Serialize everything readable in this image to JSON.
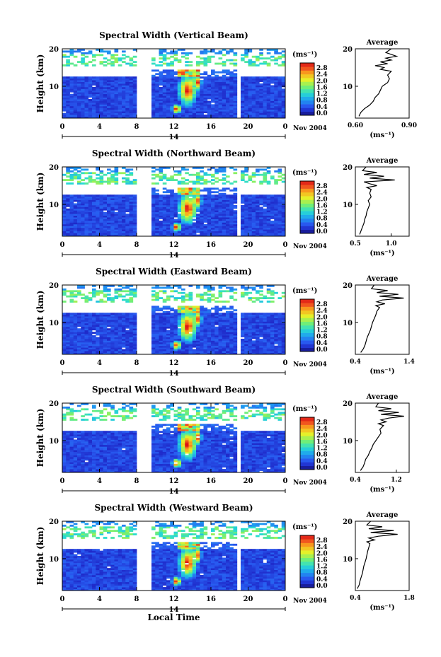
{
  "chart_data": [
    {
      "type": "heatmap",
      "title": "Spectral Width (Vertical Beam)",
      "ylabel": "Height (km)",
      "xticks": [
        "0",
        "4",
        "8",
        "12",
        "16",
        "20",
        "0"
      ],
      "yticks": [
        "10",
        "20"
      ],
      "xlim": [
        0,
        24
      ],
      "ylim": [
        1.5,
        20
      ],
      "date_tick": "14",
      "date_label": "Nov 2004",
      "colorbar": {
        "unit": "(ms⁻¹)",
        "ticks": [
          "2.8",
          "2.4",
          "2.0",
          "1.6",
          "1.2",
          "0.8",
          "0.4",
          "0.0"
        ]
      },
      "average": {
        "title": "Average",
        "xlabel": "(ms⁻¹)",
        "xticks": [
          "0.60",
          "0.90"
        ],
        "xlim": [
          0.6,
          0.9
        ],
        "yticks": [
          "10",
          "20"
        ],
        "profile": [
          [
            0.62,
            2
          ],
          [
            0.63,
            3
          ],
          [
            0.65,
            4
          ],
          [
            0.68,
            5
          ],
          [
            0.7,
            6
          ],
          [
            0.71,
            7
          ],
          [
            0.73,
            8
          ],
          [
            0.74,
            9
          ],
          [
            0.75,
            10
          ],
          [
            0.78,
            11
          ],
          [
            0.79,
            12
          ],
          [
            0.78,
            13
          ],
          [
            0.8,
            14
          ],
          [
            0.74,
            14.5
          ],
          [
            0.76,
            15
          ],
          [
            0.71,
            15.5
          ],
          [
            0.78,
            16
          ],
          [
            0.74,
            16.5
          ],
          [
            0.8,
            17
          ],
          [
            0.77,
            17.5
          ],
          [
            0.83,
            18
          ],
          [
            0.8,
            18.5
          ],
          [
            0.77,
            19
          ],
          [
            0.8,
            20
          ]
        ]
      }
    },
    {
      "type": "heatmap",
      "title": "Spectral Width (Northward Beam)",
      "ylabel": "Height (km)",
      "xticks": [
        "0",
        "4",
        "8",
        "12",
        "16",
        "20",
        "0"
      ],
      "yticks": [
        "10",
        "20"
      ],
      "xlim": [
        0,
        24
      ],
      "ylim": [
        1.5,
        20
      ],
      "date_tick": "14",
      "date_label": "Nov 2004",
      "colorbar": {
        "unit": "(ms⁻¹)",
        "ticks": [
          "2.8",
          "2.4",
          "2.0",
          "1.6",
          "1.2",
          "0.8",
          "0.4",
          "0.0"
        ]
      },
      "average": {
        "title": "Average",
        "xlabel": "(ms⁻¹)",
        "xticks": [
          "0.5",
          "1.0"
        ],
        "xlim": [
          0.5,
          1.25
        ],
        "yticks": [
          "10",
          "20"
        ],
        "profile": [
          [
            0.56,
            2
          ],
          [
            0.58,
            3
          ],
          [
            0.6,
            4
          ],
          [
            0.62,
            5
          ],
          [
            0.63,
            6
          ],
          [
            0.65,
            7
          ],
          [
            0.66,
            8
          ],
          [
            0.68,
            9
          ],
          [
            0.7,
            10
          ],
          [
            0.68,
            11
          ],
          [
            0.72,
            12
          ],
          [
            0.7,
            13
          ],
          [
            0.72,
            14
          ],
          [
            0.66,
            14.5
          ],
          [
            0.8,
            15
          ],
          [
            0.7,
            15.5
          ],
          [
            0.62,
            16
          ],
          [
            1.05,
            16.5
          ],
          [
            0.7,
            17
          ],
          [
            0.9,
            17.5
          ],
          [
            0.62,
            18
          ],
          [
            0.8,
            18.5
          ],
          [
            0.6,
            19
          ],
          [
            0.65,
            20
          ]
        ]
      }
    },
    {
      "type": "heatmap",
      "title": "Spectral Width (Eastward Beam)",
      "ylabel": "Height (km)",
      "xticks": [
        "0",
        "4",
        "8",
        "12",
        "16",
        "20",
        "0"
      ],
      "yticks": [
        "10",
        "20"
      ],
      "xlim": [
        0,
        24
      ],
      "ylim": [
        1.5,
        20
      ],
      "date_tick": "14",
      "date_label": "Nov 2004",
      "colorbar": {
        "unit": "(ms⁻¹)",
        "ticks": [
          "2.8",
          "2.4",
          "2.0",
          "1.6",
          "1.2",
          "0.8",
          "0.4",
          "0.0"
        ]
      },
      "average": {
        "title": "Average",
        "xlabel": "(ms⁻¹)",
        "xticks": [
          "0.4",
          "1.4"
        ],
        "xlim": [
          0.4,
          1.4
        ],
        "yticks": [
          "10",
          "20"
        ],
        "profile": [
          [
            0.5,
            2
          ],
          [
            0.55,
            3
          ],
          [
            0.58,
            4
          ],
          [
            0.6,
            5
          ],
          [
            0.62,
            6
          ],
          [
            0.65,
            7
          ],
          [
            0.68,
            8
          ],
          [
            0.7,
            9
          ],
          [
            0.72,
            10
          ],
          [
            0.75,
            11
          ],
          [
            0.78,
            12
          ],
          [
            0.8,
            13
          ],
          [
            0.85,
            14
          ],
          [
            0.78,
            14.5
          ],
          [
            0.95,
            15
          ],
          [
            0.8,
            15.5
          ],
          [
            0.9,
            16
          ],
          [
            1.3,
            16.5
          ],
          [
            0.85,
            17
          ],
          [
            1.2,
            17.5
          ],
          [
            0.8,
            18
          ],
          [
            1.0,
            18.5
          ],
          [
            0.7,
            19
          ],
          [
            0.75,
            20
          ]
        ]
      }
    },
    {
      "type": "heatmap",
      "title": "Spectral Width (Southward Beam)",
      "ylabel": "Height (km)",
      "xticks": [
        "0",
        "4",
        "8",
        "12",
        "16",
        "20",
        "0"
      ],
      "yticks": [
        "10",
        "20"
      ],
      "xlim": [
        0,
        24
      ],
      "ylim": [
        1.5,
        20
      ],
      "date_tick": "14",
      "date_label": "Nov 2004",
      "colorbar": {
        "unit": "(ms⁻¹)",
        "ticks": [
          "2.8",
          "2.4",
          "2.0",
          "1.6",
          "1.2",
          "0.8",
          "0.4",
          "0.0"
        ]
      },
      "average": {
        "title": "Average",
        "xlabel": "(ms⁻¹)",
        "xticks": [
          "0.4",
          "1.2"
        ],
        "xlim": [
          0.4,
          1.45
        ],
        "yticks": [
          "10",
          "20"
        ],
        "profile": [
          [
            0.5,
            2
          ],
          [
            0.55,
            3
          ],
          [
            0.58,
            4
          ],
          [
            0.6,
            5
          ],
          [
            0.65,
            6
          ],
          [
            0.68,
            7
          ],
          [
            0.72,
            8
          ],
          [
            0.75,
            9
          ],
          [
            0.8,
            10
          ],
          [
            0.85,
            11
          ],
          [
            0.9,
            12
          ],
          [
            0.88,
            13
          ],
          [
            0.95,
            14
          ],
          [
            0.85,
            14.5
          ],
          [
            1.0,
            15
          ],
          [
            0.9,
            15.5
          ],
          [
            1.05,
            16
          ],
          [
            1.35,
            16.5
          ],
          [
            0.9,
            17
          ],
          [
            1.25,
            17.5
          ],
          [
            0.85,
            18
          ],
          [
            1.1,
            18.5
          ],
          [
            0.8,
            19
          ],
          [
            0.85,
            20
          ]
        ]
      }
    },
    {
      "type": "heatmap",
      "title": "Spectral Width (Westward Beam)",
      "ylabel": "Height (km)",
      "xlabel": "Local Time",
      "xticks": [
        "0",
        "4",
        "8",
        "12",
        "16",
        "20",
        "0"
      ],
      "yticks": [
        "10",
        "20"
      ],
      "xlim": [
        0,
        24
      ],
      "ylim": [
        1.5,
        20
      ],
      "date_tick": "14",
      "date_label": "Nov 2004",
      "colorbar": {
        "unit": "(ms⁻¹)",
        "ticks": [
          "2.8",
          "2.4",
          "2.0",
          "1.6",
          "1.2",
          "0.8",
          "0.4",
          "0.0"
        ]
      },
      "average": {
        "title": "Average",
        "xlabel": "(ms⁻¹)",
        "xticks": [
          "0.4",
          "1.8"
        ],
        "xlim": [
          0.4,
          1.8
        ],
        "yticks": [
          "10",
          "20"
        ],
        "profile": [
          [
            0.45,
            2
          ],
          [
            0.5,
            3
          ],
          [
            0.52,
            4
          ],
          [
            0.55,
            5
          ],
          [
            0.58,
            6
          ],
          [
            0.6,
            7
          ],
          [
            0.62,
            8
          ],
          [
            0.65,
            9
          ],
          [
            0.68,
            10
          ],
          [
            0.7,
            11
          ],
          [
            0.72,
            12
          ],
          [
            0.75,
            13
          ],
          [
            0.78,
            14
          ],
          [
            0.7,
            14.5
          ],
          [
            0.9,
            15
          ],
          [
            0.75,
            15.5
          ],
          [
            1.0,
            16
          ],
          [
            1.5,
            16.5
          ],
          [
            0.8,
            17
          ],
          [
            1.4,
            17.5
          ],
          [
            0.75,
            18
          ],
          [
            1.1,
            18.5
          ],
          [
            0.7,
            19
          ],
          [
            0.8,
            20
          ]
        ]
      }
    }
  ]
}
